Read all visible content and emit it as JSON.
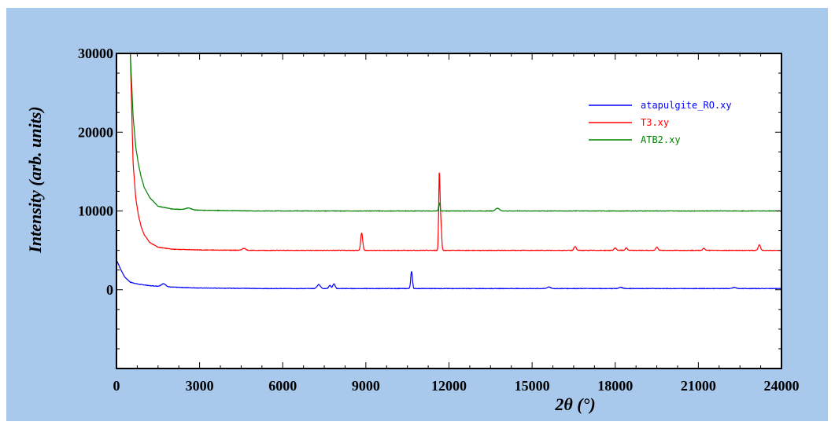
{
  "chart_data": {
    "type": "line",
    "title": "",
    "xlabel": "2θ (°)",
    "ylabel": "Intensity (arb. units)",
    "xlim": [
      0,
      24000
    ],
    "ylim": [
      -10000,
      30000
    ],
    "x_ticks": [
      "0",
      "3000",
      "6000",
      "9000",
      "12000",
      "15000",
      "18000",
      "21000",
      "24000"
    ],
    "y_ticks": [
      "0",
      "10000",
      "20000",
      "30000"
    ],
    "grid": false,
    "legend_position": "top-right",
    "colors": {
      "background": "#a8c8ec",
      "plot": "#ffffff"
    },
    "series": [
      {
        "name": "atapulgite_RO.xy",
        "color": "#0000ff",
        "baseline": 150,
        "decay": [
          [
            0,
            3800
          ],
          [
            150,
            2600
          ],
          [
            300,
            1600
          ],
          [
            500,
            950
          ],
          [
            800,
            700
          ],
          [
            1200,
            520
          ],
          [
            1500,
            450
          ],
          [
            2000,
            330
          ],
          [
            3000,
            220
          ],
          [
            5000,
            170
          ]
        ],
        "peaks": [
          [
            1700,
            350,
            80
          ],
          [
            7300,
            500,
            60
          ],
          [
            7700,
            400,
            40
          ],
          [
            7850,
            600,
            40
          ],
          [
            10650,
            2200,
            30
          ],
          [
            15600,
            200,
            60
          ],
          [
            18200,
            150,
            60
          ],
          [
            22300,
            150,
            60
          ]
        ]
      },
      {
        "name": "T3.xy",
        "color": "#ff0000",
        "baseline": 5000,
        "decay": [
          [
            500,
            30000
          ],
          [
            600,
            16000
          ],
          [
            700,
            11500
          ],
          [
            800,
            9300
          ],
          [
            900,
            7900
          ],
          [
            1000,
            7000
          ],
          [
            1200,
            6000
          ],
          [
            1500,
            5400
          ],
          [
            2000,
            5150
          ],
          [
            3000,
            5050
          ],
          [
            5000,
            5000
          ]
        ],
        "peaks": [
          [
            4600,
            250,
            60
          ],
          [
            8850,
            2200,
            35
          ],
          [
            11650,
            9000,
            22
          ],
          [
            11700,
            4000,
            30
          ],
          [
            16550,
            500,
            40
          ],
          [
            18000,
            300,
            40
          ],
          [
            18400,
            300,
            40
          ],
          [
            19500,
            400,
            40
          ],
          [
            21200,
            250,
            40
          ],
          [
            23200,
            700,
            40
          ]
        ]
      },
      {
        "name": "ATB2.xy",
        "color": "#008000",
        "baseline": 10000,
        "decay": [
          [
            500,
            30000
          ],
          [
            600,
            22000
          ],
          [
            700,
            18000
          ],
          [
            800,
            15800
          ],
          [
            900,
            14200
          ],
          [
            1000,
            13000
          ],
          [
            1200,
            11700
          ],
          [
            1500,
            10600
          ],
          [
            2000,
            10250
          ],
          [
            3000,
            10100
          ],
          [
            5000,
            10000
          ]
        ],
        "peaks": [
          [
            2600,
            220,
            100
          ],
          [
            11650,
            1000,
            25
          ],
          [
            13750,
            350,
            70
          ]
        ]
      }
    ]
  }
}
